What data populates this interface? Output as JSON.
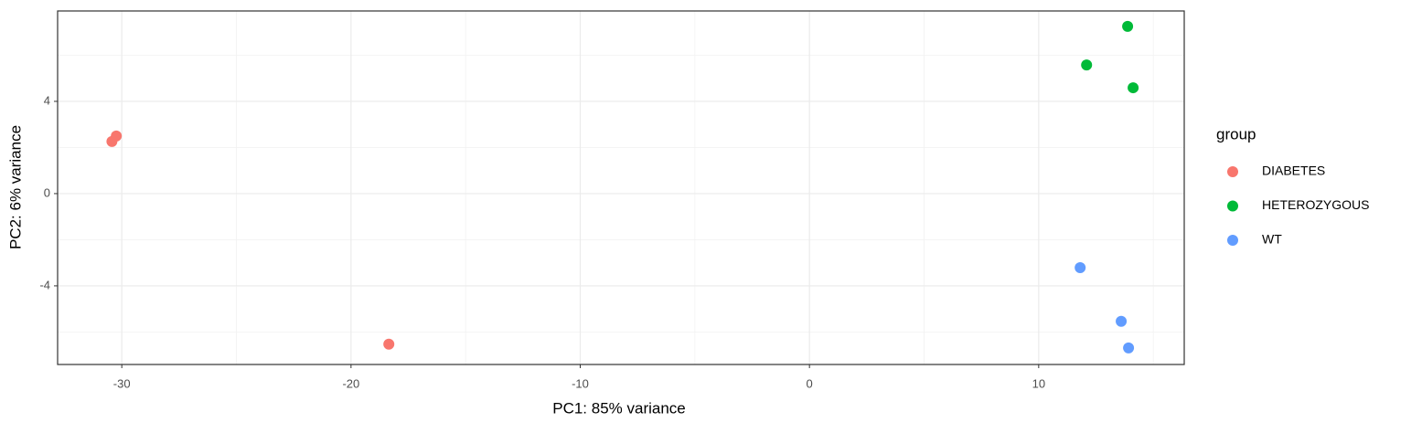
{
  "chart_data": {
    "type": "scatter",
    "x_label": "PC1: 85% variance",
    "y_label": "PC2: 6% variance",
    "legend_title": "group",
    "legend_position": "right",
    "series": [
      {
        "name": "DIABETES",
        "color": "#F8766D",
        "x": [
          -30.43,
          -30.24,
          -18.35
        ],
        "values": [
          2.26,
          2.5,
          -6.53
        ]
      },
      {
        "name": "HETEROZYGOUS",
        "color": "#00BA38",
        "x": [
          13.88,
          12.09,
          14.12
        ],
        "values": [
          7.25,
          5.58,
          4.59
        ]
      },
      {
        "name": "WT",
        "color": "#619CFF",
        "x": [
          11.81,
          13.6,
          13.92
        ],
        "values": [
          -3.21,
          -5.54,
          -6.69
        ]
      }
    ],
    "xlim": [
      -32.8,
      16.35
    ],
    "ylim": [
      -7.41,
      7.92
    ],
    "xticks": [
      -30,
      -20,
      -10,
      0,
      10
    ],
    "yticks": [
      -4,
      0,
      4
    ],
    "x_minor_grid": [
      -25,
      -15,
      -5,
      5,
      15
    ],
    "y_minor_grid": [
      -6,
      -2,
      2,
      6
    ],
    "grid": true
  }
}
